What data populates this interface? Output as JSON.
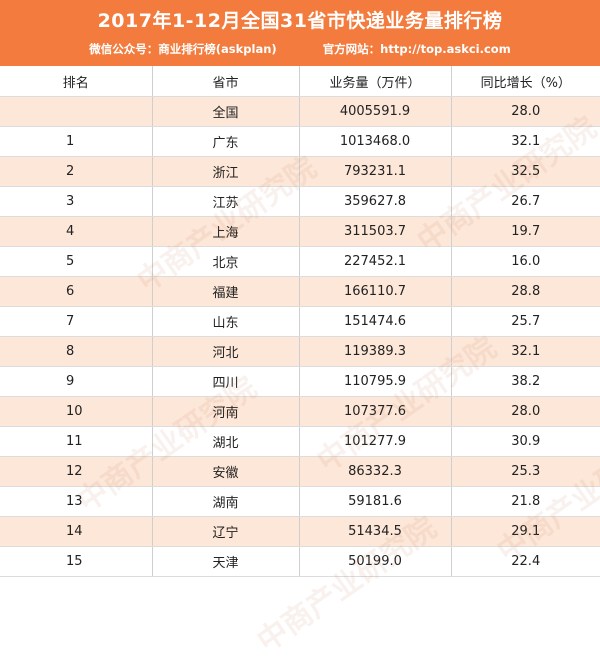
{
  "header": {
    "title": "2017年1-12月全国31省市快递业务量排行榜",
    "wechat": "微信公众号：商业排行榜(askplan)",
    "website": "官方网站：http://top.askci.com"
  },
  "table": {
    "columns": [
      "排名",
      "省市",
      "业务量（万件）",
      "同比增长（%）"
    ],
    "rows": [
      {
        "rank": "",
        "region": "全国",
        "volume": "4005591.9",
        "growth": "28.0"
      },
      {
        "rank": "1",
        "region": "广东",
        "volume": "1013468.0",
        "growth": "32.1"
      },
      {
        "rank": "2",
        "region": "浙江",
        "volume": "793231.1",
        "growth": "32.5"
      },
      {
        "rank": "3",
        "region": "江苏",
        "volume": "359627.8",
        "growth": "26.7"
      },
      {
        "rank": "4",
        "region": "上海",
        "volume": "311503.7",
        "growth": "19.7"
      },
      {
        "rank": "5",
        "region": "北京",
        "volume": "227452.1",
        "growth": "16.0"
      },
      {
        "rank": "6",
        "region": "福建",
        "volume": "166110.7",
        "growth": "28.8"
      },
      {
        "rank": "7",
        "region": "山东",
        "volume": "151474.6",
        "growth": "25.7"
      },
      {
        "rank": "8",
        "region": "河北",
        "volume": "119389.3",
        "growth": "32.1"
      },
      {
        "rank": "9",
        "region": "四川",
        "volume": "110795.9",
        "growth": "38.2"
      },
      {
        "rank": "10",
        "region": "河南",
        "volume": "107377.6",
        "growth": "28.0"
      },
      {
        "rank": "11",
        "region": "湖北",
        "volume": "101277.9",
        "growth": "30.9"
      },
      {
        "rank": "12",
        "region": "安徽",
        "volume": "86332.3",
        "growth": "25.3"
      },
      {
        "rank": "13",
        "region": "湖南",
        "volume": "59181.6",
        "growth": "21.8"
      },
      {
        "rank": "14",
        "region": "辽宁",
        "volume": "51434.5",
        "growth": "29.1"
      },
      {
        "rank": "15",
        "region": "天津",
        "volume": "50199.0",
        "growth": "22.4"
      }
    ]
  },
  "watermark": {
    "text": "中商产业研究院"
  }
}
